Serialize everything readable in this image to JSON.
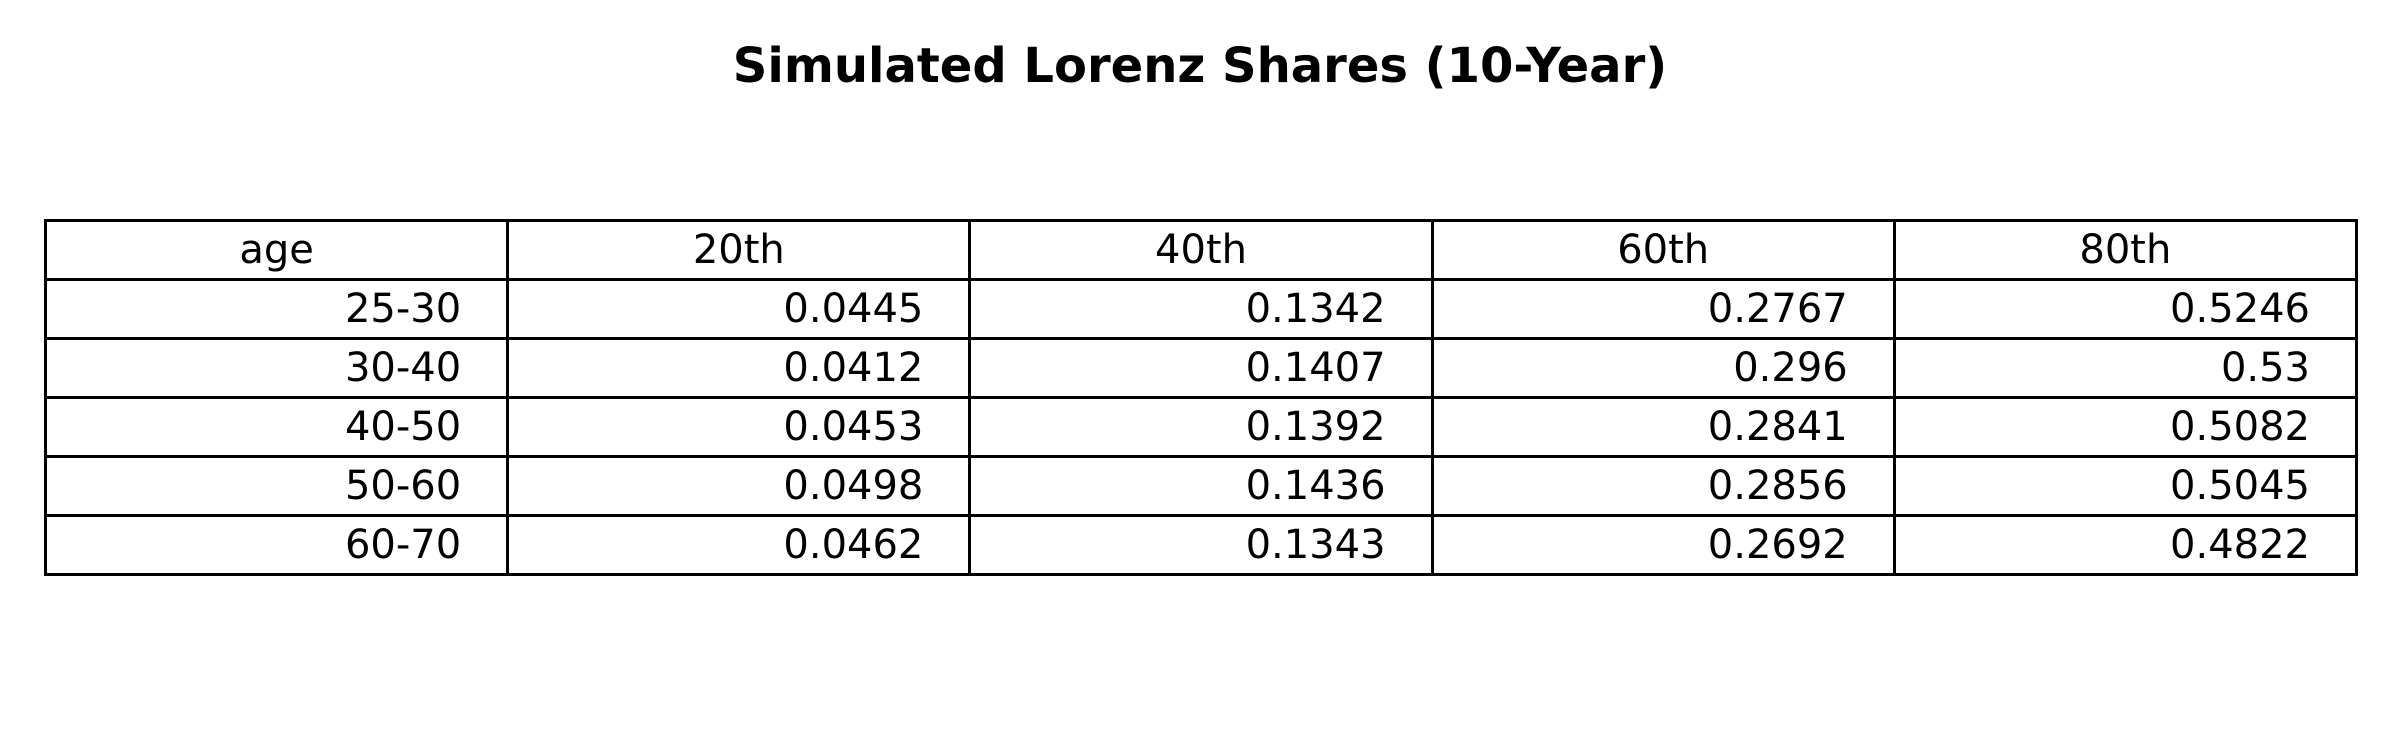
{
  "chart_data": {
    "type": "table",
    "title": "Simulated Lorenz Shares (10-Year)",
    "columns": [
      "age",
      "20th",
      "40th",
      "60th",
      "80th"
    ],
    "rows": [
      [
        "25-30",
        "0.0445",
        "0.1342",
        "0.2767",
        "0.5246"
      ],
      [
        "30-40",
        "0.0412",
        "0.1407",
        "0.296",
        "0.53"
      ],
      [
        "40-50",
        "0.0453",
        "0.1392",
        "0.2841",
        "0.5082"
      ],
      [
        "50-60",
        "0.0498",
        "0.1436",
        "0.2856",
        "0.5045"
      ],
      [
        "60-70",
        "0.0462",
        "0.1343",
        "0.2692",
        "0.4822"
      ]
    ]
  }
}
